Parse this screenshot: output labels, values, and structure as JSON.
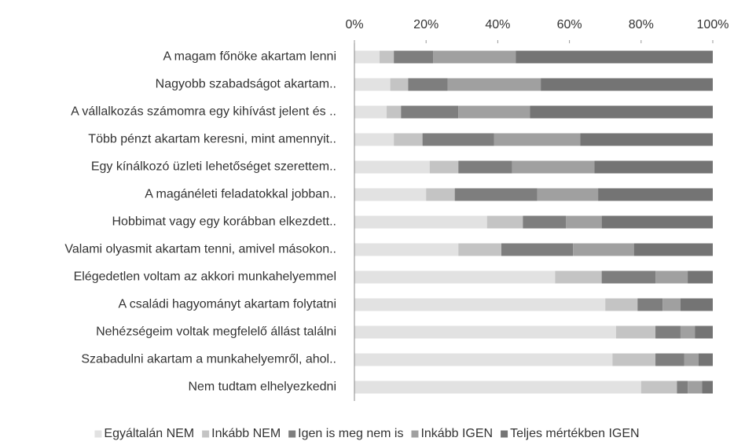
{
  "chart_data": {
    "type": "stacked_barh",
    "categories": [
      "A magam főnöke akartam lenni",
      "Nagyobb szabadságot akartam..",
      "A vállalkozás számomra egy kihívást jelent és ..",
      "Több pénzt akartam keresni, mint amennyit..",
      "Egy kínálkozó üzleti lehetőséget szerettem..",
      "A magánéleti feladatokkal jobban..",
      "Hobbimat vagy egy korábban elkezdett..",
      "Valami olyasmit akartam tenni, amivel másokon..",
      "Elégedetlen voltam az akkori munkahelyemmel",
      "A családi hagyományt akartam folytatni",
      "Nehézségeim voltak megfelelő állást találni",
      "Szabadulni akartam a munkahelyemről, ahol..",
      "Nem tudtam elhelyezkedni"
    ],
    "series": [
      {
        "name": "Egyáltalán NEM",
        "color": "#e2e2e2",
        "values": [
          7,
          10,
          9,
          11,
          21,
          20,
          37,
          29,
          56,
          70,
          73,
          72,
          80
        ]
      },
      {
        "name": "Inkább NEM",
        "color": "#c4c4c4",
        "values": [
          4,
          5,
          4,
          8,
          8,
          8,
          10,
          12,
          13,
          9,
          11,
          12,
          10
        ]
      },
      {
        "name": "Igen is meg nem is",
        "color": "#7e7e7e",
        "values": [
          11,
          11,
          16,
          20,
          15,
          23,
          12,
          20,
          15,
          7,
          7,
          8,
          3
        ]
      },
      {
        "name": "Inkább IGEN",
        "color": "#a0a0a0",
        "values": [
          23,
          26,
          20,
          24,
          23,
          17,
          10,
          17,
          9,
          5,
          4,
          4,
          4
        ]
      },
      {
        "name": "Teljes mértékben IGEN",
        "color": "#747474",
        "values": [
          55,
          48,
          51,
          37,
          33,
          32,
          31,
          22,
          7,
          9,
          5,
          4,
          3
        ]
      }
    ],
    "xlim": [
      0,
      100
    ],
    "xticks": [
      {
        "value": 0,
        "label": "0%"
      },
      {
        "value": 20,
        "label": "20%"
      },
      {
        "value": 40,
        "label": "40%"
      },
      {
        "value": 60,
        "label": "60%"
      },
      {
        "value": 80,
        "label": "80%"
      },
      {
        "value": 100,
        "label": "100%"
      }
    ],
    "legend": "bottom"
  }
}
